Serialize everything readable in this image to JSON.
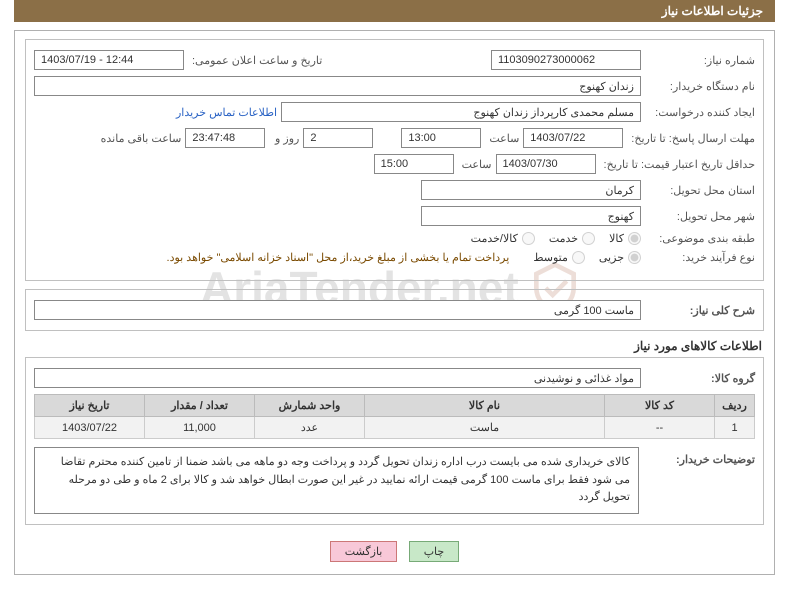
{
  "header": {
    "title": "جزئیات اطلاعات نیاز"
  },
  "need": {
    "number_label": "شماره نیاز:",
    "number": "1103090273000062",
    "announce_label": "تاریخ و ساعت اعلان عمومی:",
    "announce_value": "1403/07/19 - 12:44",
    "buyer_org_label": "نام دستگاه خریدار:",
    "buyer_org": "زندان کهنوج",
    "requester_label": "ایجاد کننده درخواست:",
    "requester": "مسلم محمدی کارپرداز زندان کهنوج",
    "contact_link": "اطلاعات تماس خریدار",
    "deadline_label": "مهلت ارسال پاسخ: تا تاریخ:",
    "deadline_date": "1403/07/22",
    "time_label": "ساعت",
    "deadline_time": "13:00",
    "days_value": "2",
    "days_and": "روز و",
    "remain_time": "23:47:48",
    "remain_label": "ساعت باقی مانده",
    "validity_label": "حداقل تاریخ اعتبار قیمت: تا تاریخ:",
    "validity_date": "1403/07/30",
    "validity_time": "15:00",
    "province_label": "استان محل تحویل:",
    "province": "کرمان",
    "city_label": "شهر محل تحویل:",
    "city": "کهنوج",
    "class_label": "طبقه بندی موضوعی:",
    "class_opts": {
      "goods": "کالا",
      "service": "خدمت",
      "both": "کالا/خدمت"
    },
    "process_label": "نوع فرآیند خرید:",
    "process_opts": {
      "small": "جزیی",
      "medium": "متوسط"
    },
    "process_note": "پرداخت تمام یا بخشی از مبلغ خرید،از محل \"اسناد خزانه اسلامی\" خواهد بود.",
    "summary_label": "شرح کلی نیاز:",
    "summary": "ماست 100 گرمی"
  },
  "items": {
    "section_title": "اطلاعات کالاهای مورد نیاز",
    "group_label": "گروه کالا:",
    "group": "مواد غذائی و نوشیدنی",
    "columns": {
      "row": "ردیف",
      "code": "کد کالا",
      "name": "نام کالا",
      "unit": "واحد شمارش",
      "qty": "تعداد / مقدار",
      "date": "تاریخ نیاز"
    },
    "rows": [
      {
        "num": "1",
        "code": "--",
        "name": "ماست",
        "unit": "عدد",
        "qty": "11,000",
        "date": "1403/07/22"
      }
    ]
  },
  "buyer_desc": {
    "label": "توضیحات خریدار:",
    "text": "کالای خریداری شده می بایست درب اداره زندان تحویل گردد و پرداخت وجه دو ماهه می باشد ضمنا از تامین کننده محترم تقاضا می شود فقط برای ماست 100 گرمی قیمت ارائه نمایید در غیر این صورت ابطال خواهد شد و کالا برای 2 ماه و طی دو مرحله تحویل گردد"
  },
  "buttons": {
    "print": "چاپ",
    "back": "بازگشت"
  },
  "style": {
    "header_bg": "#8b6f47",
    "border": "#b0b0b0",
    "th_bg": "#d9d9d9",
    "td_bg": "#f2f2f2"
  }
}
